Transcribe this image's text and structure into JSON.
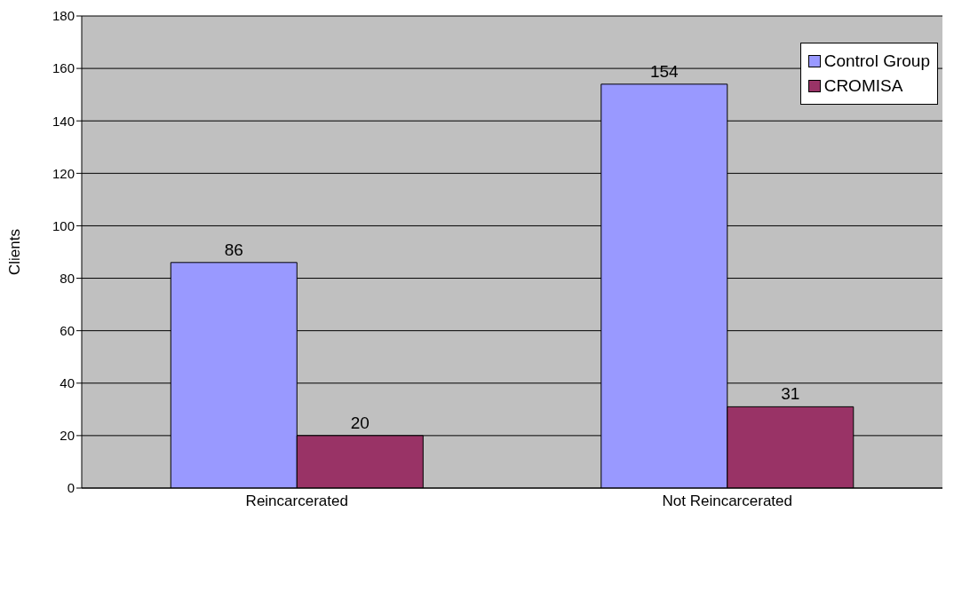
{
  "chart_data": {
    "type": "bar",
    "categories": [
      "Reincarcerated",
      "Not Reincarcerated"
    ],
    "series": [
      {
        "name": "Control Group",
        "color": "#9999ff",
        "values": [
          86,
          154
        ]
      },
      {
        "name": "CROMISA",
        "color": "#993366",
        "values": [
          20,
          31
        ]
      }
    ],
    "ylabel": "Clients",
    "ylim": [
      0,
      180
    ],
    "yticks": [
      0,
      20,
      40,
      60,
      80,
      100,
      120,
      140,
      160,
      180
    ],
    "grid": "y",
    "legend": "top right",
    "data_labels": true
  }
}
